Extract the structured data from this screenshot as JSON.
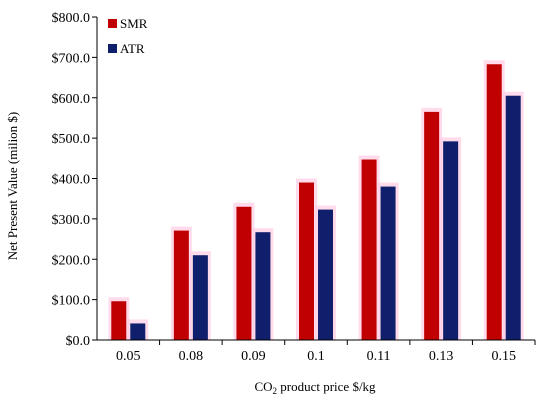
{
  "chart_data": {
    "type": "bar",
    "title": "",
    "xlabel": {
      "prefix": "CO",
      "subscript": "2",
      "suffix": " product price $/kg"
    },
    "ylabel": "Net Present Value (milion $)",
    "categories": [
      "0.05",
      "0.08",
      "0.09",
      "0.1",
      "0.11",
      "0.13",
      "0.15"
    ],
    "series": [
      {
        "name": "SMR",
        "color": "#c00000",
        "values": [
          96,
          271,
          330,
          390,
          447,
          565,
          683
        ]
      },
      {
        "name": "ATR",
        "color": "#0f1f6b",
        "values": [
          41,
          210,
          267,
          323,
          380,
          492,
          605
        ]
      }
    ],
    "ylim": [
      0,
      800
    ],
    "yticks": [
      0,
      100,
      200,
      300,
      400,
      500,
      600,
      700,
      800
    ],
    "ytick_labels": [
      "$0.0",
      "$100.0",
      "$200.0",
      "$300.0",
      "$400.0",
      "$500.0",
      "$600.0",
      "$700.0",
      "$800.0"
    ],
    "grid": false,
    "legend_position": "top-left",
    "bar_glow_color": "#ffcfe6"
  }
}
